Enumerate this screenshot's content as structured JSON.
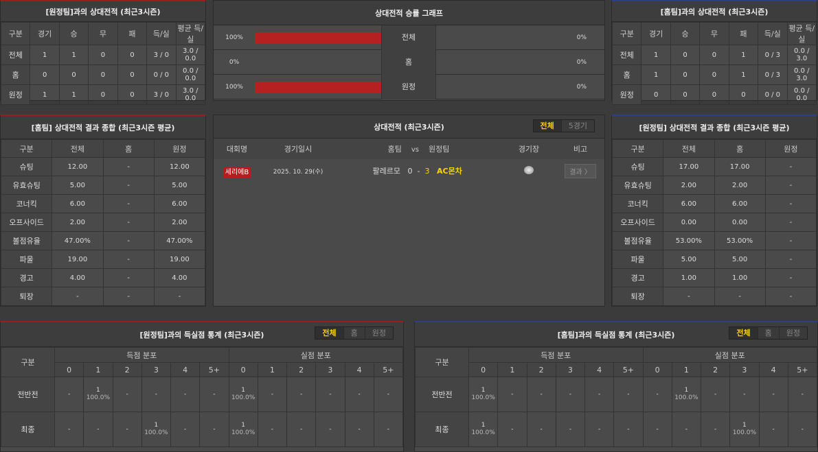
{
  "h2h_away": {
    "title": "[원정팀]과의 상대전적 (최근3시즌)",
    "headers": [
      "구분",
      "경기",
      "승",
      "무",
      "패",
      "득/실",
      "평균 득/실"
    ],
    "rows": [
      [
        "전체",
        "1",
        "1",
        "0",
        "0",
        "3 / 0",
        "3.0 / 0.0"
      ],
      [
        "홈",
        "0",
        "0",
        "0",
        "0",
        "0 / 0",
        "0.0 / 0.0"
      ],
      [
        "원정",
        "1",
        "1",
        "0",
        "0",
        "3 / 0",
        "3.0 / 0.0"
      ]
    ]
  },
  "graph": {
    "title": "상대전적 승률 그래프",
    "rows": [
      {
        "label": "전체",
        "left": "100%",
        "right": "0%",
        "left_value": 100
      },
      {
        "label": "홈",
        "left": "0%",
        "right": "0%",
        "left_value": 0
      },
      {
        "label": "원정",
        "left": "100%",
        "right": "0%",
        "left_value": 100
      }
    ],
    "bar_color": "#b52020"
  },
  "h2h_home": {
    "title": "[홈팀]과의 상대전적 (최근3시즌)",
    "headers": [
      "구분",
      "경기",
      "승",
      "무",
      "패",
      "득/실",
      "평균 득/실"
    ],
    "rows": [
      [
        "전체",
        "1",
        "0",
        "0",
        "1",
        "0 / 3",
        "0.0 / 3.0"
      ],
      [
        "홈",
        "1",
        "0",
        "0",
        "1",
        "0 / 3",
        "0.0 / 3.0"
      ],
      [
        "원정",
        "0",
        "0",
        "0",
        "0",
        "0 / 0",
        "0.0 / 0.0"
      ]
    ]
  },
  "sum_home": {
    "title": "[홈팀] 상대전적 결과 종합 (최근3시즌 평균)",
    "headers": [
      "구분",
      "전체",
      "홈",
      "원정"
    ],
    "rows": [
      [
        "슈팅",
        "12.00",
        "-",
        "12.00"
      ],
      [
        "유효슈팅",
        "5.00",
        "-",
        "5.00"
      ],
      [
        "코너킥",
        "6.00",
        "-",
        "6.00"
      ],
      [
        "오프사이드",
        "2.00",
        "-",
        "2.00"
      ],
      [
        "볼점유율",
        "47.00%",
        "-",
        "47.00%"
      ],
      [
        "파울",
        "19.00",
        "-",
        "19.00"
      ],
      [
        "경고",
        "4.00",
        "-",
        "4.00"
      ],
      [
        "퇴장",
        "-",
        "-",
        "-"
      ]
    ]
  },
  "sum_away": {
    "title": "[원정팀] 상대전적 결과 종합 (최근3시즌 평균)",
    "headers": [
      "구분",
      "전체",
      "홈",
      "원정"
    ],
    "rows": [
      [
        "슈팅",
        "17.00",
        "17.00",
        "-"
      ],
      [
        "유효슈팅",
        "2.00",
        "2.00",
        "-"
      ],
      [
        "코너킥",
        "6.00",
        "6.00",
        "-"
      ],
      [
        "오프사이드",
        "0.00",
        "0.00",
        "-"
      ],
      [
        "볼점유율",
        "53.00%",
        "53.00%",
        "-"
      ],
      [
        "파울",
        "5.00",
        "5.00",
        "-"
      ],
      [
        "경고",
        "1.00",
        "1.00",
        "-"
      ],
      [
        "퇴장",
        "-",
        "-",
        "-"
      ]
    ]
  },
  "matches": {
    "title": "상대전적 (최근3시즌)",
    "tabs": [
      "전체",
      "5경기"
    ],
    "headers": {
      "league": "대회명",
      "date": "경기일시",
      "home": "홈팀",
      "vs": "vs",
      "away": "원정팀",
      "venue": "경기장",
      "note": "비고"
    },
    "rows": [
      {
        "league": "세리에B",
        "date": "2025. 10. 29(수)",
        "home": "팔레르모",
        "home_score": "0",
        "dash": "-",
        "away_score": "3",
        "away": "AC몬차",
        "result": "결과 〉"
      }
    ]
  },
  "goals_away": {
    "title": "[원정팀]과의 득실점 통계 (최근3시즌)",
    "tabs": [
      "전체",
      "홈",
      "원정"
    ],
    "label": "구분",
    "for": "득점 분포",
    "against": "실점 분포",
    "cols": [
      "0",
      "1",
      "2",
      "3",
      "4",
      "5+"
    ],
    "rows": [
      {
        "label": "전반전",
        "cells": [
          [
            "-"
          ],
          [
            "1",
            "100.0%"
          ],
          [
            "-"
          ],
          [
            "-"
          ],
          [
            "-"
          ],
          [
            "-"
          ],
          [
            "1",
            "100.0%"
          ],
          [
            "-"
          ],
          [
            "-"
          ],
          [
            "-"
          ],
          [
            "-"
          ],
          [
            "-"
          ]
        ]
      },
      {
        "label": "최종",
        "cells": [
          [
            "-"
          ],
          [
            "-"
          ],
          [
            "-"
          ],
          [
            "1",
            "100.0%"
          ],
          [
            "-"
          ],
          [
            "-"
          ],
          [
            "1",
            "100.0%"
          ],
          [
            "-"
          ],
          [
            "-"
          ],
          [
            "-"
          ],
          [
            "-"
          ],
          [
            "-"
          ]
        ]
      }
    ]
  },
  "goals_home": {
    "title": "[홈팀]과의 득실점 통계 (최근3시즌)",
    "tabs": [
      "전체",
      "홈",
      "원정"
    ],
    "label": "구분",
    "for": "득점 분포",
    "against": "실점 분포",
    "cols": [
      "0",
      "1",
      "2",
      "3",
      "4",
      "5+"
    ],
    "rows": [
      {
        "label": "전반전",
        "cells": [
          [
            "1",
            "100.0%"
          ],
          [
            "-"
          ],
          [
            "-"
          ],
          [
            "-"
          ],
          [
            "-"
          ],
          [
            "-"
          ],
          [
            "-"
          ],
          [
            "1",
            "100.0%"
          ],
          [
            "-"
          ],
          [
            "-"
          ],
          [
            "-"
          ],
          [
            "-"
          ]
        ]
      },
      {
        "label": "최종",
        "cells": [
          [
            "1",
            "100.0%"
          ],
          [
            "-"
          ],
          [
            "-"
          ],
          [
            "-"
          ],
          [
            "-"
          ],
          [
            "-"
          ],
          [
            "-"
          ],
          [
            "-"
          ],
          [
            "-"
          ],
          [
            "1",
            "100.0%"
          ],
          [
            "-"
          ],
          [
            "-"
          ]
        ]
      }
    ]
  }
}
